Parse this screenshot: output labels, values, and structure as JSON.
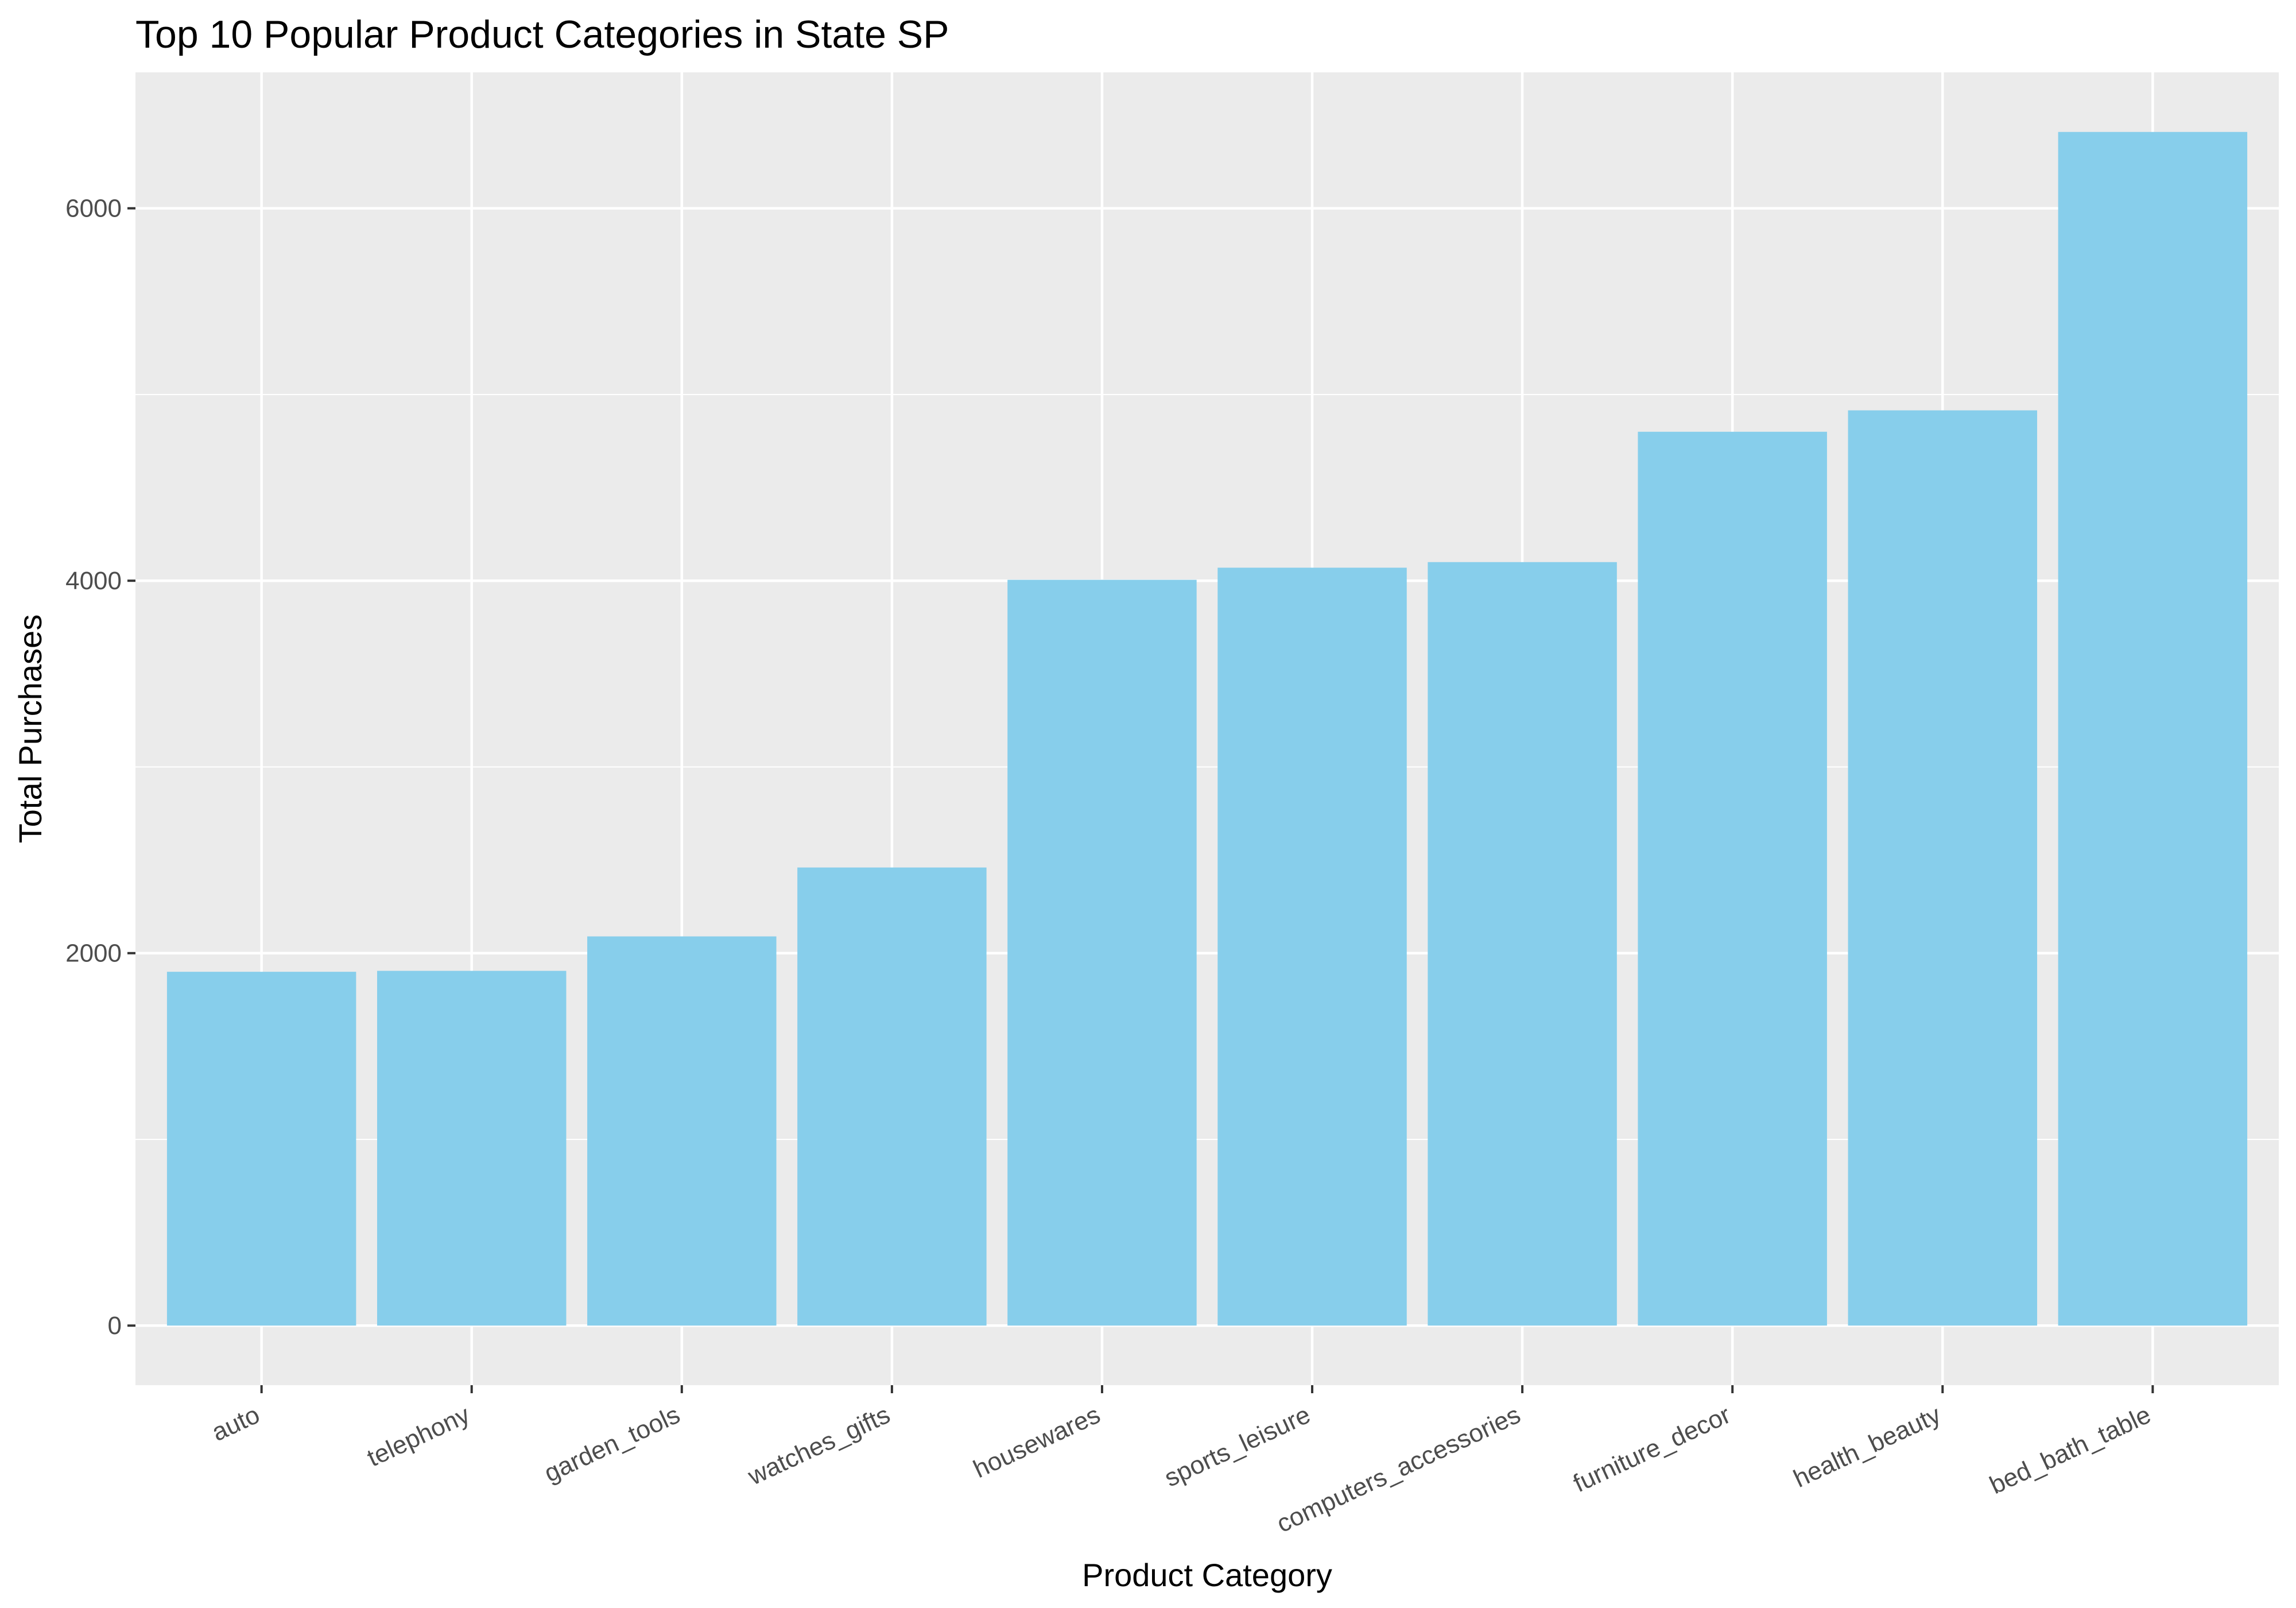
{
  "chart_data": {
    "type": "bar",
    "title": "Top 10 Popular Product Categories in State SP",
    "xlabel": "Product Category",
    "ylabel": "Total Purchases",
    "categories": [
      "auto",
      "telephony",
      "garden_tools",
      "watches_gifts",
      "housewares",
      "sports_leisure",
      "computers_accessories",
      "furniture_decor",
      "health_beauty",
      "bed_bath_table"
    ],
    "values": [
      1900,
      1905,
      2090,
      2460,
      4005,
      4070,
      4100,
      4800,
      4915,
      6410
    ],
    "ylim": [
      -320,
      6730
    ],
    "yticks": [
      0,
      2000,
      4000,
      6000
    ],
    "grid": true,
    "legend": "none",
    "colors": {
      "bar": "#87CEEB",
      "panel": "#EBEBEB",
      "grid": "#FFFFFF",
      "text": "#4D4D4D",
      "tick": "#333333"
    }
  }
}
